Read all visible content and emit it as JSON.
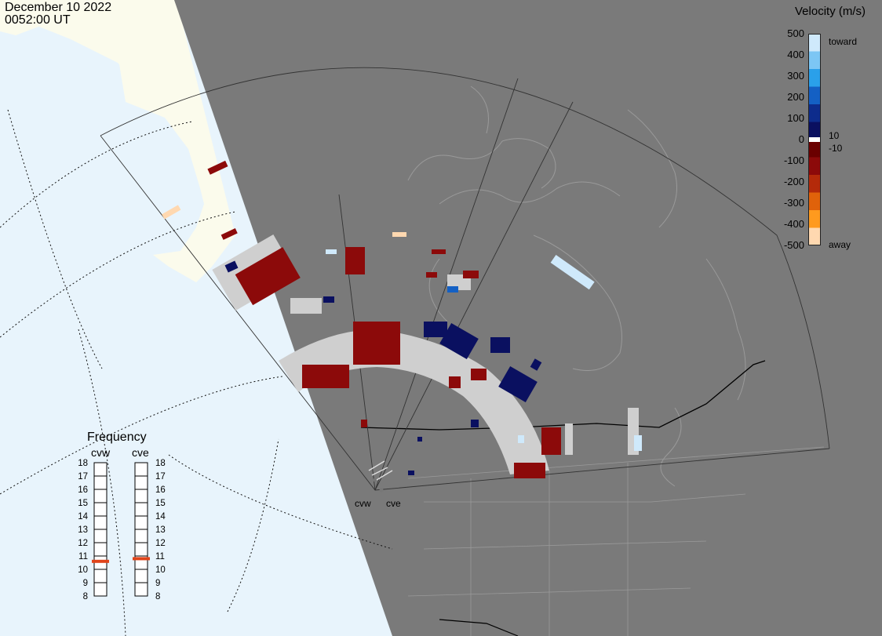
{
  "header": {
    "date": "December 10 2022",
    "time": "0052:00 UT"
  },
  "velocity_legend": {
    "title": "Velocity (m/s)",
    "ticks": [
      "500",
      "400",
      "300",
      "200",
      "100",
      "0",
      "-100",
      "-200",
      "-300",
      "-400",
      "-500"
    ],
    "side_labels": {
      "toward": "toward",
      "plus10": "10",
      "minus10": "-10",
      "away": "away"
    },
    "colors": [
      "#cfe9fb",
      "#7cc6f4",
      "#2aa0ea",
      "#1460c4",
      "#0d2c8c",
      "#0a1060",
      "#6a0000",
      "#8c0a0a",
      "#b42a0a",
      "#e0620a",
      "#ff9a1e",
      "#ffd8b0"
    ]
  },
  "frequency_panel": {
    "title": "Frequency",
    "radars": [
      "cvw",
      "cve"
    ],
    "ticks": [
      "18",
      "17",
      "16",
      "15",
      "14",
      "13",
      "12",
      "11",
      "10",
      "9",
      "8"
    ],
    "selected_mhz": [
      10.6,
      10.8
    ],
    "marker_color": "#e0441a"
  },
  "map": {
    "sites": [
      "cvw",
      "cve"
    ],
    "land_color": "#7a7a7a",
    "ocean_color": "#e8f4fc",
    "no_data_land_color": "#fbfbec",
    "ground_scatter_color": "#cfcfcf"
  }
}
